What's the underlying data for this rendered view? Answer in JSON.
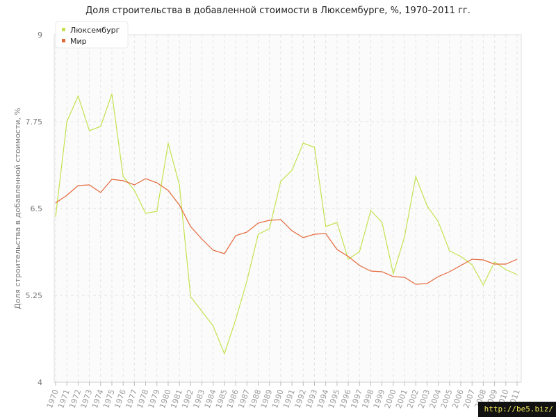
{
  "chart_data": {
    "type": "line",
    "title": "Доля строительства в добавленной стоимости в Люксембурге, %, 1970–2011 гг.",
    "ylabel": "Доля строительства в добавленной стоимости, %",
    "xlabel": "",
    "ylim": [
      4,
      9
    ],
    "yticks": [
      "4",
      "5.25",
      "6.5",
      "7.75",
      "9"
    ],
    "legend_position": "top-left",
    "grid": true,
    "categories": [
      "1970",
      "1971",
      "1972",
      "1973",
      "1974",
      "1975",
      "1976",
      "1977",
      "1978",
      "1979",
      "1980",
      "1981",
      "1982",
      "1983",
      "1984",
      "1985",
      "1986",
      "1987",
      "1988",
      "1989",
      "1990",
      "1991",
      "1992",
      "1993",
      "1994",
      "1995",
      "1996",
      "1997",
      "1998",
      "1999",
      "2000",
      "2001",
      "2002",
      "2003",
      "2004",
      "2005",
      "2006",
      "2007",
      "2008",
      "2009",
      "2010",
      "2011"
    ],
    "series": [
      {
        "name": "Люксембург",
        "color": "#c3e24e",
        "values": [
          6.38,
          7.75,
          8.12,
          7.62,
          7.68,
          8.15,
          6.96,
          6.76,
          6.43,
          6.46,
          7.44,
          6.84,
          5.23,
          5.02,
          4.81,
          4.41,
          4.9,
          5.46,
          6.13,
          6.21,
          6.89,
          7.05,
          7.44,
          7.38,
          6.24,
          6.3,
          5.77,
          5.88,
          6.47,
          6.3,
          5.56,
          6.09,
          6.96,
          6.54,
          6.31,
          5.89,
          5.81,
          5.69,
          5.4,
          5.73,
          5.62,
          5.55
        ]
      },
      {
        "name": "Мир",
        "color": "#e3683a",
        "values": [
          6.58,
          6.69,
          6.83,
          6.84,
          6.73,
          6.92,
          6.9,
          6.84,
          6.93,
          6.87,
          6.76,
          6.55,
          6.24,
          6.06,
          5.9,
          5.85,
          6.11,
          6.16,
          6.29,
          6.33,
          6.34,
          6.18,
          6.08,
          6.13,
          6.14,
          5.91,
          5.81,
          5.68,
          5.6,
          5.59,
          5.52,
          5.51,
          5.41,
          5.42,
          5.52,
          5.59,
          5.68,
          5.77,
          5.76,
          5.7,
          5.7,
          5.77
        ]
      }
    ]
  },
  "watermark": "http://be5.biz/"
}
